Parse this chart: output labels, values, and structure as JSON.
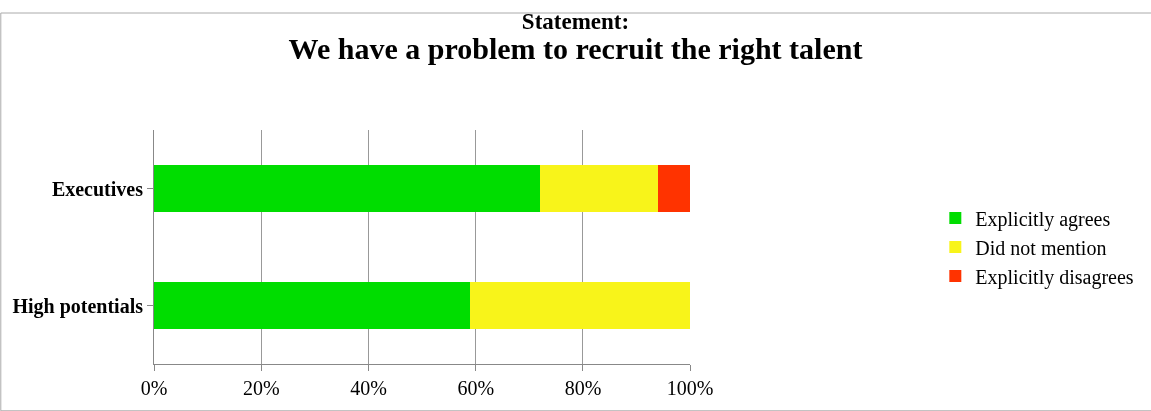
{
  "chart_data": {
    "type": "bar",
    "orientation": "horizontal",
    "stacked": true,
    "title": "Statement:",
    "subtitle": "We have a problem to recruit the right talent",
    "categories": [
      "Executives",
      "High potentials"
    ],
    "series": [
      {
        "name": "Explicitly agrees",
        "color": "#00dd00",
        "values": [
          72,
          59
        ]
      },
      {
        "name": "Did not mention",
        "color": "#f8f41a",
        "values": [
          22,
          41
        ]
      },
      {
        "name": "Explicitly disagrees",
        "color": "#ff3300",
        "values": [
          6,
          0
        ]
      }
    ],
    "xlim": [
      0,
      100
    ],
    "xticks": [
      {
        "value": 0,
        "label": "0%"
      },
      {
        "value": 20,
        "label": "20%"
      },
      {
        "value": 40,
        "label": "40%"
      },
      {
        "value": 60,
        "label": "60%"
      },
      {
        "value": 80,
        "label": "80%"
      },
      {
        "value": 100,
        "label": "100%"
      }
    ],
    "grid": "x",
    "legend": "right"
  }
}
